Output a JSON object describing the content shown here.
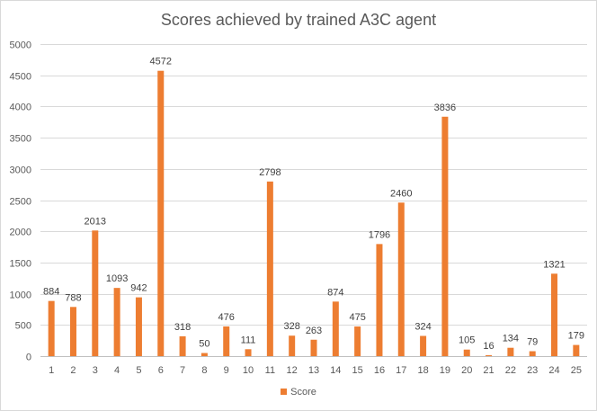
{
  "chart_data": {
    "type": "bar",
    "title": "Scores achieved by trained A3C agent",
    "xlabel": "",
    "ylabel": "",
    "ylim": [
      0,
      5000
    ],
    "ytick_step": 500,
    "grid": "horizontal",
    "legend_position": "bottom",
    "categories": [
      "1",
      "2",
      "3",
      "4",
      "5",
      "6",
      "7",
      "8",
      "9",
      "10",
      "11",
      "12",
      "13",
      "14",
      "15",
      "16",
      "17",
      "18",
      "19",
      "20",
      "21",
      "22",
      "23",
      "24",
      "25"
    ],
    "series": [
      {
        "name": "Score",
        "color": "#ed7d31",
        "values": [
          884,
          788,
          2013,
          1093,
          942,
          4572,
          318,
          50,
          476,
          111,
          2798,
          328,
          263,
          874,
          475,
          1796,
          2460,
          324,
          3836,
          105,
          16,
          134,
          79,
          1321,
          179
        ]
      }
    ]
  }
}
